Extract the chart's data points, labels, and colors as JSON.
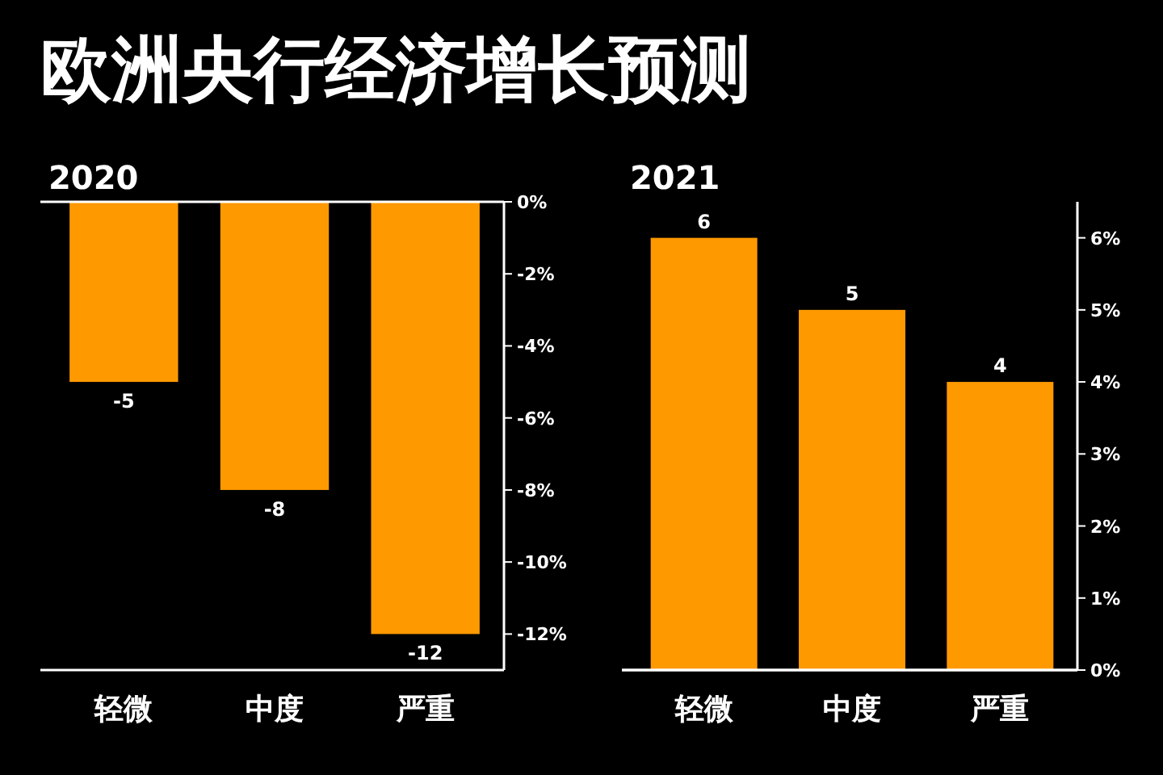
{
  "chart_data": [
    {
      "type": "bar",
      "title": "2020",
      "categories": [
        "轻微",
        "中度",
        "严重"
      ],
      "values": [
        -5,
        -8,
        -12
      ],
      "color": "#ff9900",
      "ylim": [
        -13,
        0
      ],
      "yticks": [
        {
          "value": 0,
          "label": "0%"
        },
        {
          "value": -2,
          "label": "-2%"
        },
        {
          "value": -4,
          "label": "-4%"
        },
        {
          "value": -6,
          "label": "-6%"
        },
        {
          "value": -8,
          "label": "-8%"
        },
        {
          "value": -10,
          "label": "-10%"
        },
        {
          "value": -12,
          "label": "-12%"
        }
      ],
      "data_labels": true,
      "annotations": [
        "欧洲央行经济增长预测"
      ]
    },
    {
      "type": "bar",
      "title": "2021",
      "categories": [
        "轻微",
        "中度",
        "严重"
      ],
      "values": [
        6,
        5,
        4
      ],
      "color": "#ff9900",
      "ylim": [
        0,
        6.5
      ],
      "yticks": [
        {
          "value": 0,
          "label": "0%"
        },
        {
          "value": 1,
          "label": "1%"
        },
        {
          "value": 2,
          "label": "2%"
        },
        {
          "value": 3,
          "label": "3%"
        },
        {
          "value": 4,
          "label": "4%"
        },
        {
          "value": 5,
          "label": "5%"
        },
        {
          "value": 6,
          "label": "6%"
        }
      ],
      "data_labels": true
    }
  ]
}
